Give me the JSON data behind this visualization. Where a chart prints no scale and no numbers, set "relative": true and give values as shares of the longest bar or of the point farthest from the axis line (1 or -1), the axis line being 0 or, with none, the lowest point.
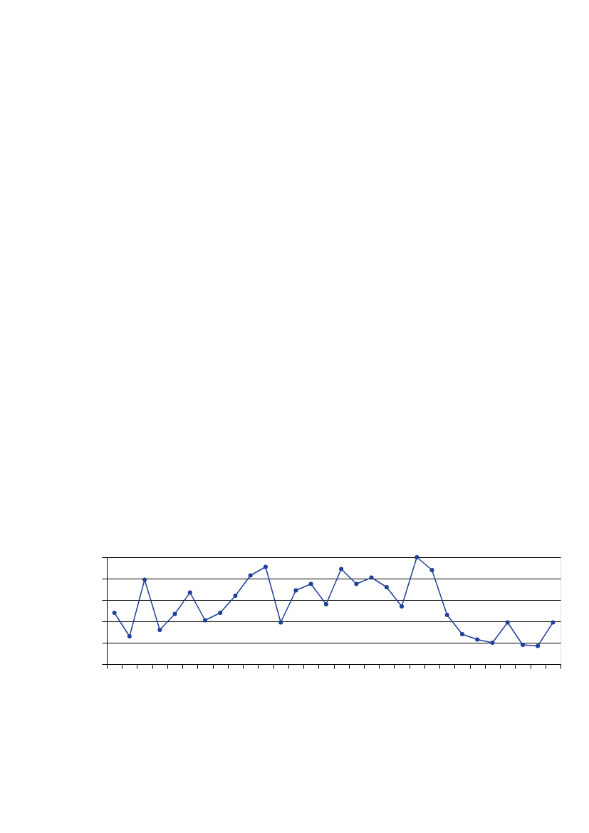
{
  "chart_data": {
    "type": "line",
    "categories": [
      null,
      null,
      null,
      null,
      null,
      null,
      null,
      null,
      null,
      null,
      null,
      null,
      null,
      null,
      null,
      null,
      null,
      null,
      null,
      null,
      null,
      null,
      null,
      null,
      null,
      null,
      null,
      null,
      null,
      null
    ],
    "series": [
      {
        "color": "#1f3f99",
        "values": [
          0.48,
          0.26,
          0.79,
          0.32,
          0.47,
          0.67,
          0.41,
          0.48,
          0.64,
          0.83,
          0.91,
          0.39,
          0.69,
          0.75,
          0.56,
          0.89,
          0.75,
          0.81,
          0.72,
          0.54,
          1.0,
          0.88,
          0.46,
          0.28,
          0.23,
          0.2,
          0.39,
          0.18,
          0.17,
          0.39
        ]
      }
    ],
    "relative": true,
    "grid": "y",
    "marker": "circle",
    "line_style": "solid",
    "tick_labels": false
  }
}
